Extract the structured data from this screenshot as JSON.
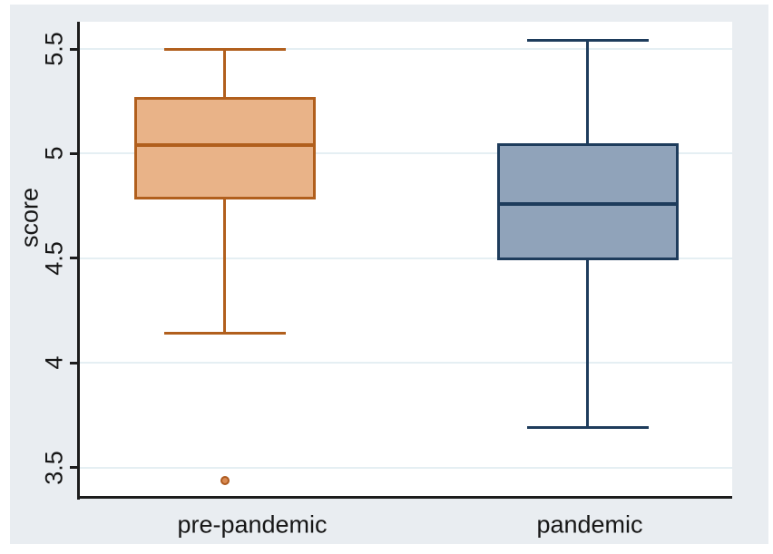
{
  "figure": {
    "kind": "box-plot-figure"
  },
  "colors": {
    "canvas_bg": "#ffffff",
    "graph_bg": "#e9edf1",
    "plot_bg": "#ffffff",
    "gridline": "#e5eff3",
    "axis_line": "#1c1c1c",
    "text": "#161616",
    "outlier_fill": "#d98a52",
    "outlier_stroke": "#ad5a1f"
  },
  "chart_data": {
    "type": "box",
    "title": "",
    "xlabel": "",
    "ylabel": "score",
    "ylim": [
      3.36,
      5.63
    ],
    "yticks": [
      5.5,
      5.0,
      4.5,
      4.0,
      3.5
    ],
    "ytick_labels": [
      "5.5",
      "5",
      "4.5",
      "4",
      "3.5"
    ],
    "grid": true,
    "legend": "none",
    "categories": [
      "pre-pandemic",
      "pandemic"
    ],
    "series": [
      {
        "name": "pre-pandemic",
        "upper_whisker": 5.5,
        "q3": 5.27,
        "median": 5.04,
        "q1": 4.78,
        "lower_whisker": 4.14,
        "outliers": [
          3.44
        ],
        "fill": "#e9b388",
        "stroke": "#b15f1d"
      },
      {
        "name": "pandemic",
        "upper_whisker": 5.54,
        "q3": 5.05,
        "median": 4.76,
        "q1": 4.49,
        "lower_whisker": 3.69,
        "outliers": [],
        "fill": "#90a3ba",
        "stroke": "#1e3c5c"
      }
    ]
  }
}
